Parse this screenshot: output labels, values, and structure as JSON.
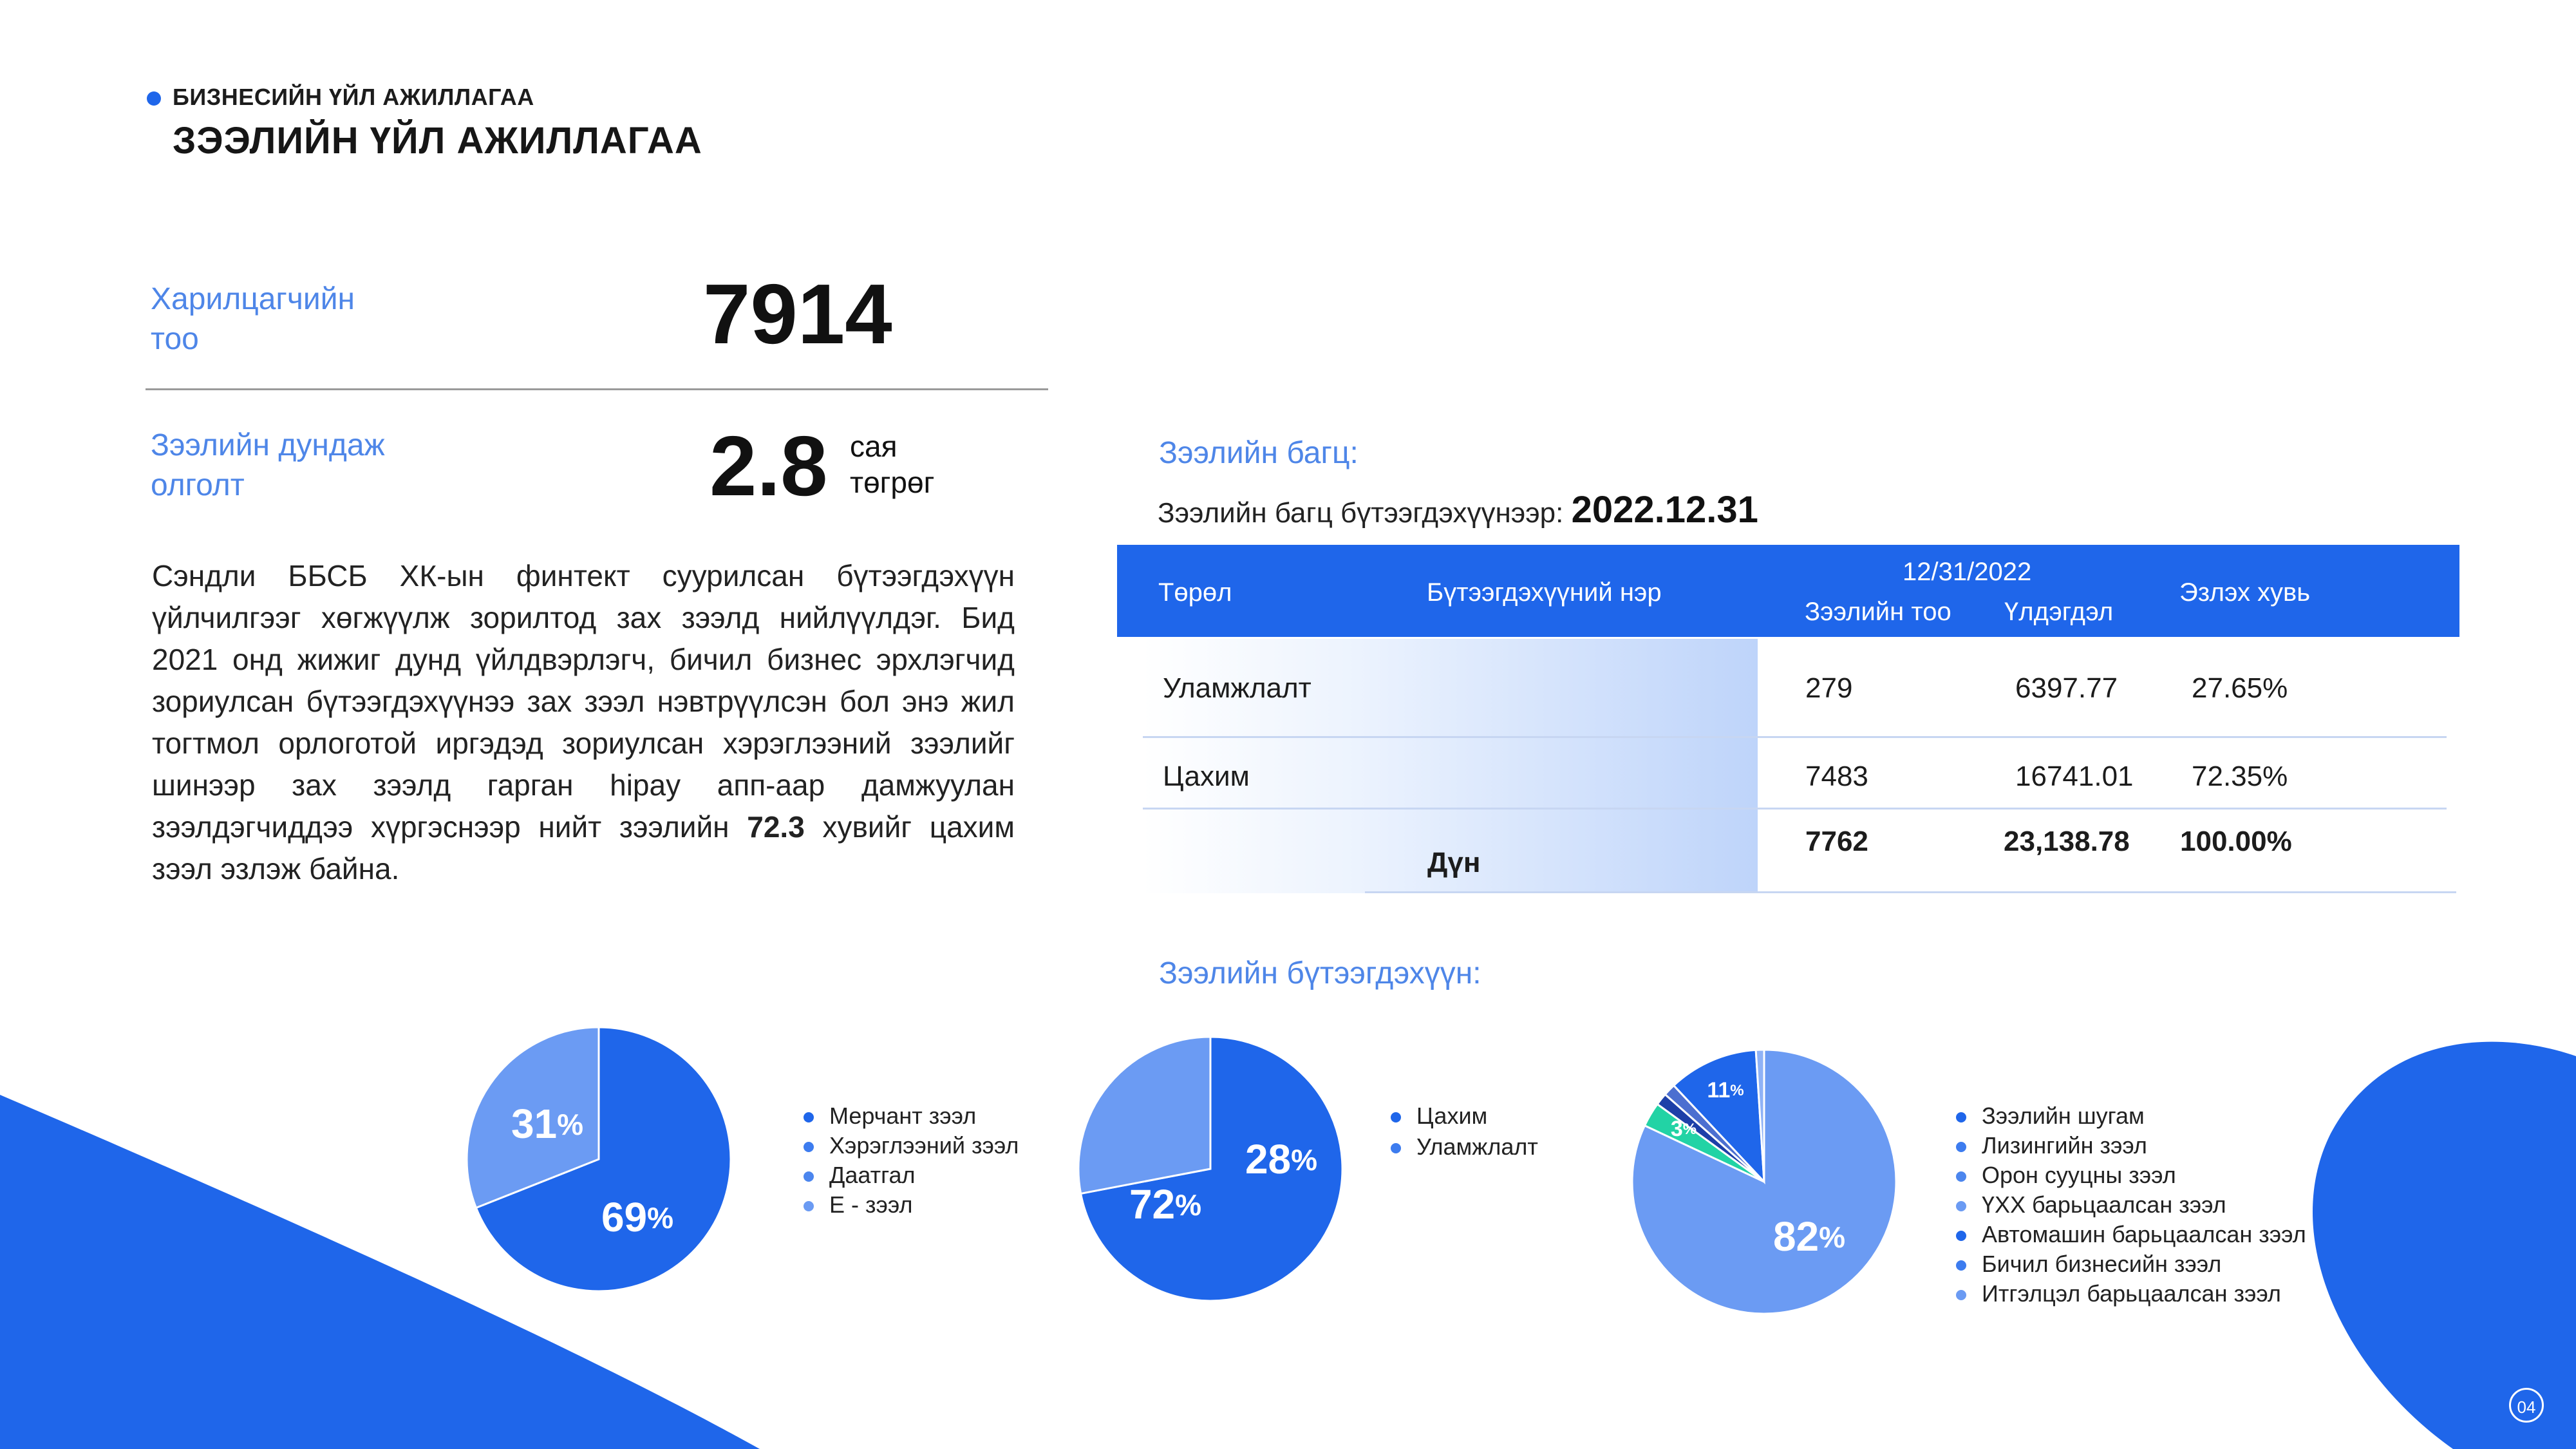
{
  "header": {
    "section_label": "БИЗНЕСИЙН ҮЙЛ АЖИЛЛАГАА",
    "title": "ЗЭЭЛИЙН ҮЙЛ АЖИЛЛАГАА"
  },
  "kpis": {
    "customers": {
      "label_line1": "Харилцагчийн",
      "label_line2": "тоо",
      "value": "7914"
    },
    "avg_loan": {
      "label_line1": "Зээлийн дундаж",
      "label_line2": "олголт",
      "value": "2.8",
      "unit_line1": "сая",
      "unit_line2": "төгрөг"
    }
  },
  "description": {
    "before": "Сэндли ББСБ ХК-ын финтект суурилсан бүтээгдэхүүн үйлчилгээг хөгжүүлж зорилтод зах зээлд нийлүүлдэг. Бид 2021 онд жижиг дунд үйлдвэрлэгч, бичил бизнес эрхлэгчид зориулсан бүтээгдэхүүнээ зах зээл нэвтрүүлсэн бол энэ жил тогтмол орлоготой иргэдэд зориулсан хэрэглээний зээлийг шинээр зах зээлд гарган hipay апп-аар дамжуулан зээлдэгчиддээ хүргэснээр нийт зээлийн ",
    "highlight": "72.3",
    "after": " хувийг цахим зээл эзлэж байна."
  },
  "portfolio": {
    "label": "Зээлийн багц:",
    "as_of_text": "Зээлийн багц бүтээгдэхүүнээр: ",
    "as_of_date": "2022.12.31",
    "headers": {
      "type": "Төрөл",
      "product": "Бүтээгдэхүүний нэр",
      "date": "12/31/2022",
      "count": "Зээлийн тоо",
      "balance": "Үлдэгдэл",
      "share": "Эзлэх хувь"
    },
    "rows": [
      {
        "type": "Уламжлалт",
        "count": "279",
        "balance": "6397.77",
        "share": "27.65%"
      },
      {
        "type": "Цахим",
        "count": "7483",
        "balance": "16741.01",
        "share": "72.35%"
      }
    ],
    "total": {
      "label": "Дүн",
      "count": "7762",
      "balance": "23,138.78",
      "share": "100.00%"
    }
  },
  "products_label": "Зээлийн бүтээгдэхүүн:",
  "chart_data": [
    {
      "type": "pie",
      "slices": [
        {
          "label": "",
          "value": 69,
          "display": "69",
          "color": "#1f66ea"
        },
        {
          "label": "",
          "value": 31,
          "display": "31",
          "color": "#6b9bf3"
        }
      ],
      "legend": [
        {
          "name": "Мерчант зээл",
          "color": "#1f66ea"
        },
        {
          "name": "Хэрэглээний зээл",
          "color": "#3d7cef"
        },
        {
          "name": "Даатгал",
          "color": "#4c86ee"
        },
        {
          "name": "E - зээл",
          "color": "#6b9bf3"
        }
      ],
      "legend_placement": "right",
      "value_suffix": "%"
    },
    {
      "type": "pie",
      "slices": [
        {
          "label": "",
          "value": 72,
          "display": "72",
          "color": "#1f66ea"
        },
        {
          "label": "",
          "value": 28,
          "display": "28",
          "color": "#6b9bf3"
        }
      ],
      "legend": [
        {
          "name": "Цахим",
          "color": "#1f66ea"
        },
        {
          "name": "Уламжлалт",
          "color": "#3d7cef"
        }
      ],
      "legend_placement": "right",
      "value_suffix": "%"
    },
    {
      "type": "pie",
      "slices": [
        {
          "label": "",
          "value": 82,
          "display": "82",
          "color": "#6b9bf3"
        },
        {
          "label": "",
          "value": 3,
          "display": "3",
          "color": "#22d3a5"
        },
        {
          "label": "",
          "value": 1.5,
          "display": "",
          "color": "#1d3fa8"
        },
        {
          "label": "",
          "value": 1.5,
          "display": "",
          "color": "#4c6fd0"
        },
        {
          "label": "",
          "value": 11,
          "display": "11",
          "color": "#1f66ea"
        },
        {
          "label": "",
          "value": 1,
          "display": "",
          "color": "#8fb2f6"
        }
      ],
      "legend": [
        {
          "name": "Зээлийн шугам",
          "color": "#1f66ea"
        },
        {
          "name": "Лизингийн зээл",
          "color": "#3d7cef"
        },
        {
          "name": "Орон сууцны зээл",
          "color": "#4c86ee"
        },
        {
          "name": "ҮХХ барьцаалсан зээл",
          "color": "#6b9bf3"
        },
        {
          "name": "Автомашин барьцаалсан зээл",
          "color": "#1f66ea"
        },
        {
          "name": "Бичил бизнесийн зээл",
          "color": "#3d7cef"
        },
        {
          "name": "Итгэлцэл барьцаалсан зээл",
          "color": "#6b9bf3"
        }
      ],
      "legend_placement": "right",
      "value_suffix": "%"
    }
  ],
  "page_number": "04",
  "colors": {
    "accent": "#1f66ea",
    "label": "#4e86e8"
  }
}
